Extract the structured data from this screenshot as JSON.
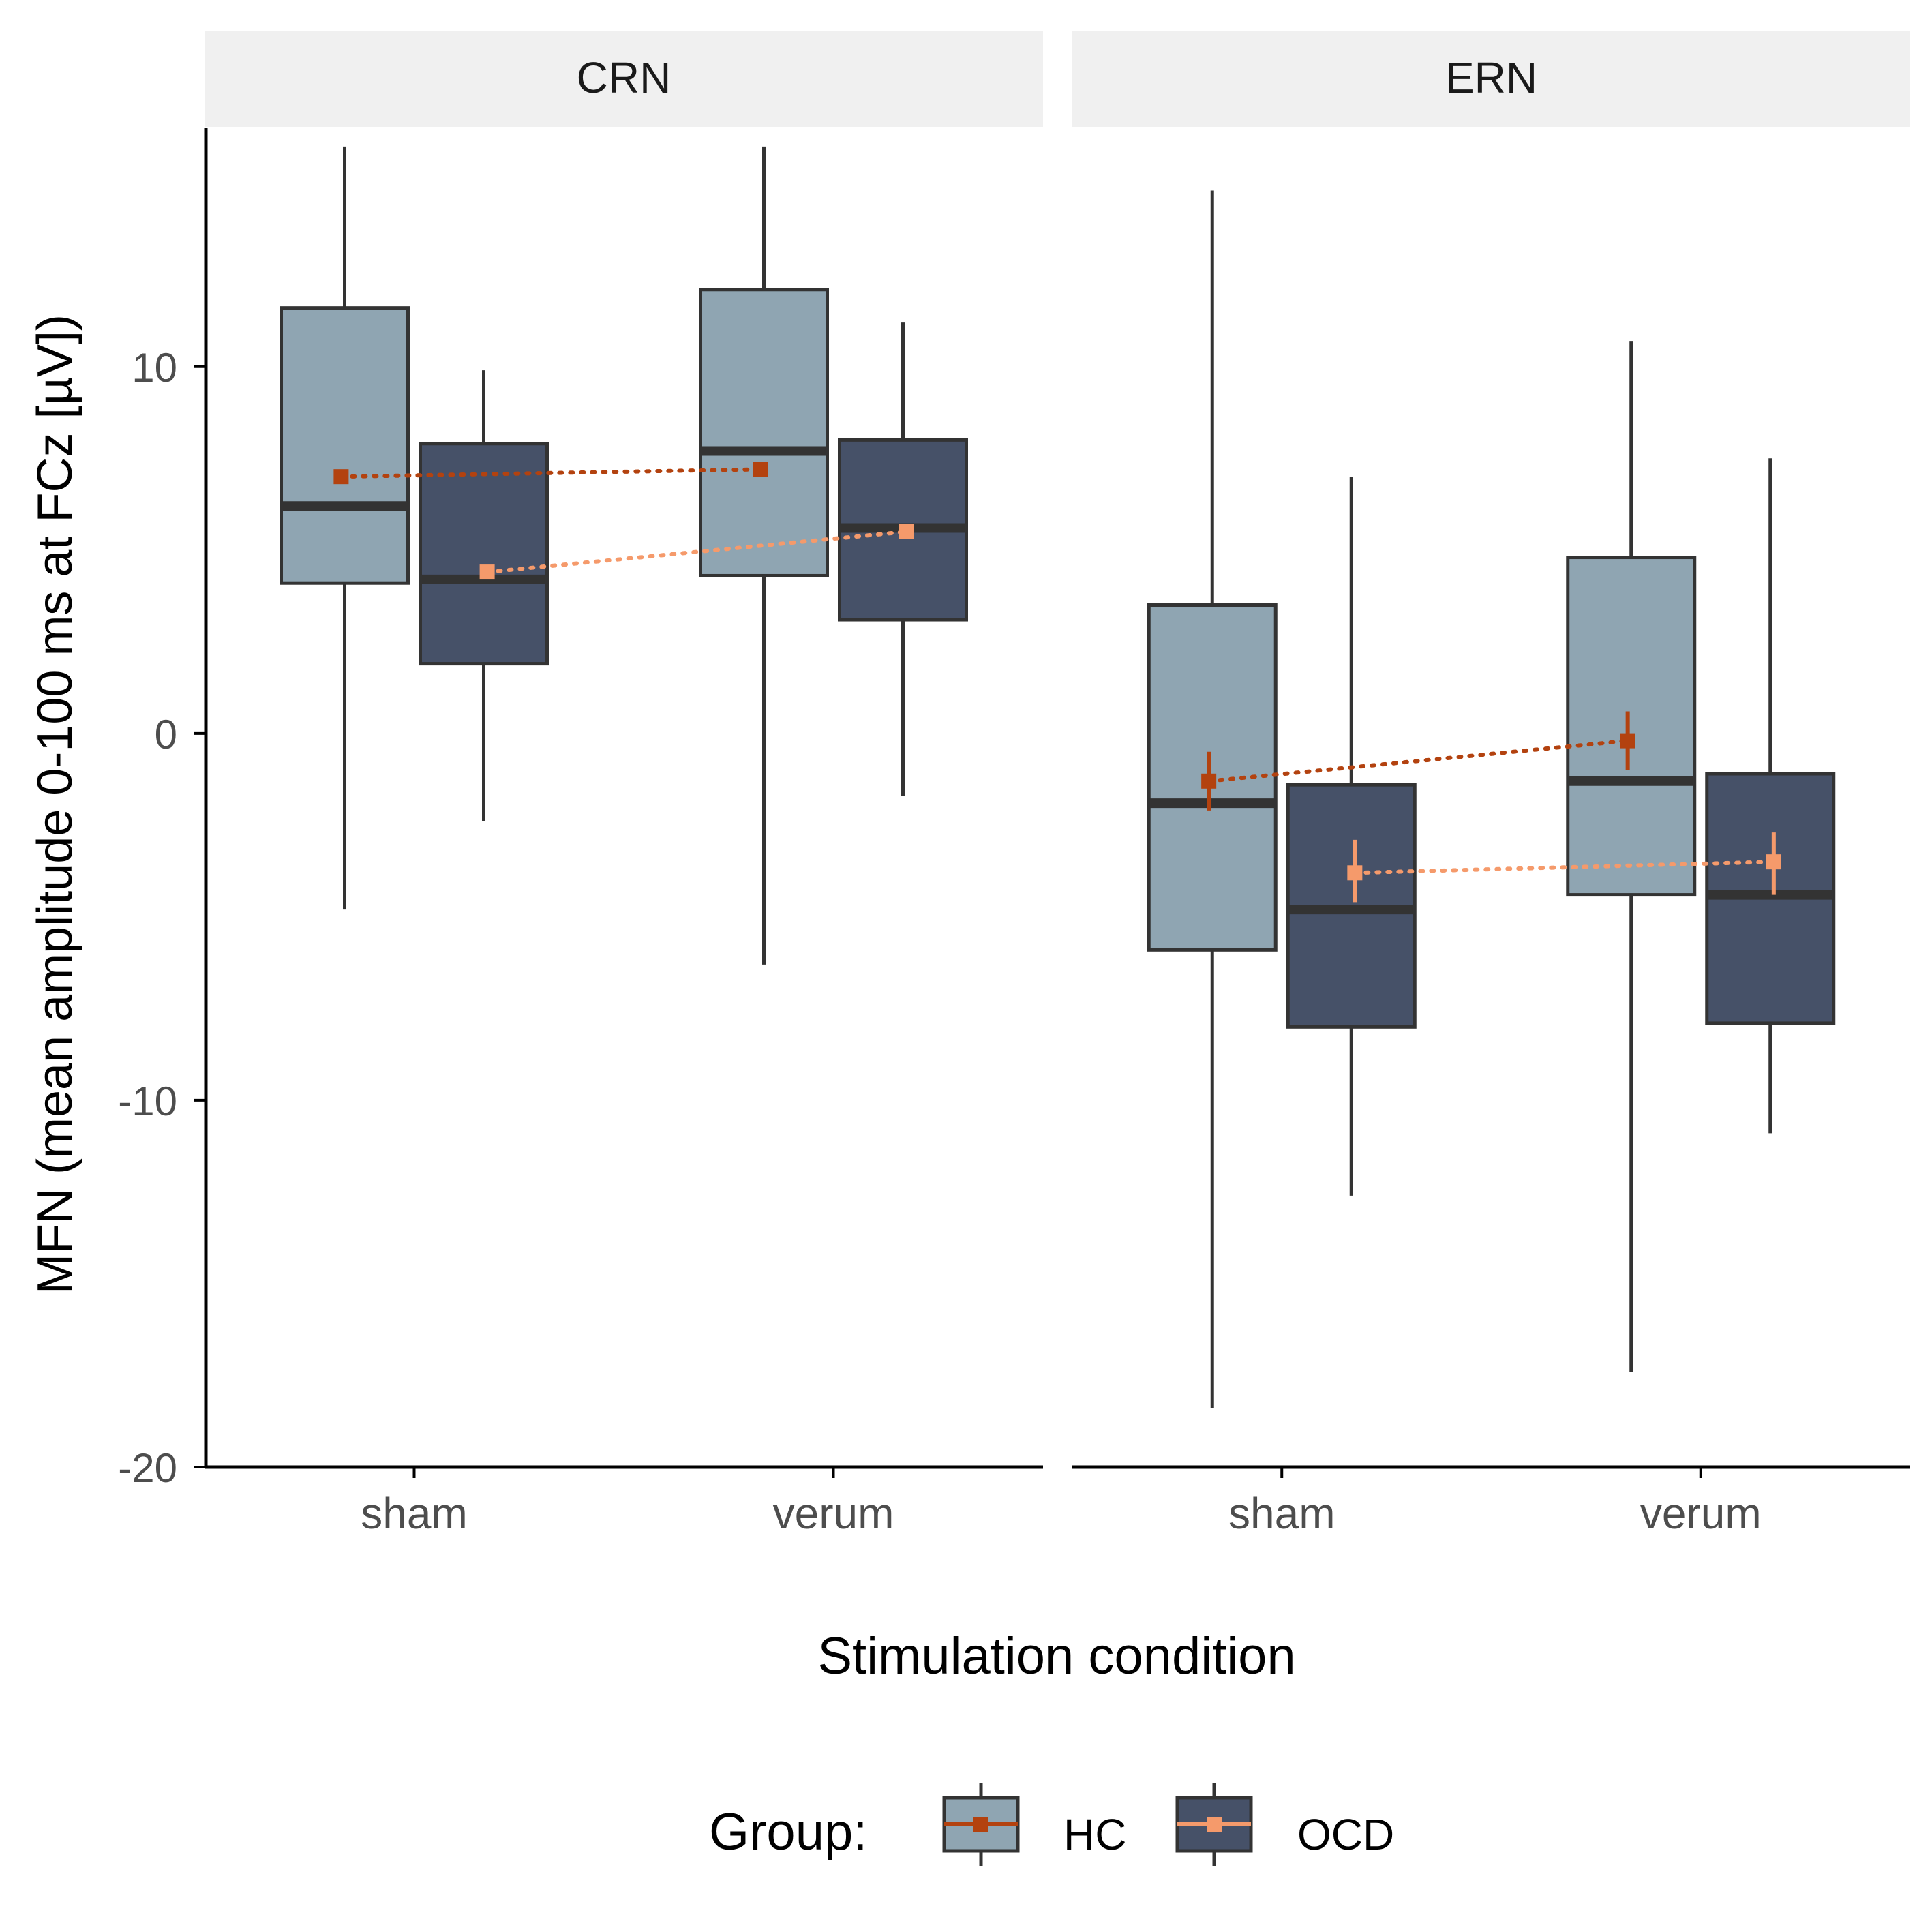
{
  "chart_data": {
    "type": "boxplot",
    "ylabel": "MFN (mean amplitude 0-100 ms at FCz [µV])",
    "xlabel": "Stimulation condition",
    "ylim": [
      -20,
      16.5
    ],
    "yticks": [
      -20,
      -10,
      0,
      10
    ],
    "categories": [
      "sham",
      "verum"
    ],
    "groups": [
      "HC",
      "OCD"
    ],
    "legend": {
      "title": "Group:",
      "position": "bottom",
      "items": [
        "HC",
        "OCD"
      ]
    },
    "colors": {
      "box_HC": "#8fa5b2",
      "box_OCD": "#465168",
      "outline": "#333333",
      "mean_HC": "#b3420f",
      "mean_OCD": "#f59a6b",
      "strip_bg": "#f0f0f0"
    },
    "panels": [
      {
        "title": "CRN",
        "boxes": [
          {
            "group": "HC",
            "condition": "sham",
            "min": -4.8,
            "q1": 4.1,
            "median": 6.2,
            "q3": 11.6,
            "max": 16.0
          },
          {
            "group": "OCD",
            "condition": "sham",
            "min": -2.4,
            "q1": 1.9,
            "median": 4.2,
            "q3": 7.9,
            "max": 9.9
          },
          {
            "group": "HC",
            "condition": "verum",
            "min": -6.3,
            "q1": 4.3,
            "median": 7.7,
            "q3": 12.1,
            "max": 16.0
          },
          {
            "group": "OCD",
            "condition": "verum",
            "min": -1.7,
            "q1": 3.1,
            "median": 5.6,
            "q3": 8.0,
            "max": 11.2
          }
        ],
        "means": [
          {
            "group": "HC",
            "condition": "sham",
            "mean": 7.0,
            "lo": 7.0,
            "hi": 7.0
          },
          {
            "group": "HC",
            "condition": "verum",
            "mean": 7.2,
            "lo": 7.2,
            "hi": 7.2
          },
          {
            "group": "OCD",
            "condition": "sham",
            "mean": 4.4,
            "lo": 4.4,
            "hi": 4.4
          },
          {
            "group": "OCD",
            "condition": "verum",
            "mean": 5.5,
            "lo": 5.5,
            "hi": 5.5
          }
        ]
      },
      {
        "title": "ERN",
        "boxes": [
          {
            "group": "HC",
            "condition": "sham",
            "min": -18.4,
            "q1": -5.9,
            "median": -1.9,
            "q3": 3.5,
            "max": 14.8
          },
          {
            "group": "OCD",
            "condition": "sham",
            "min": -12.6,
            "q1": -8.0,
            "median": -4.8,
            "q3": -1.4,
            "max": 7.0
          },
          {
            "group": "HC",
            "condition": "verum",
            "min": -17.4,
            "q1": -4.4,
            "median": -1.3,
            "q3": 4.8,
            "max": 10.7
          },
          {
            "group": "OCD",
            "condition": "verum",
            "min": -10.9,
            "q1": -7.9,
            "median": -4.4,
            "q3": -1.1,
            "max": 7.5
          }
        ],
        "means": [
          {
            "group": "HC",
            "condition": "sham",
            "mean": -1.3,
            "lo": -2.1,
            "hi": -0.5
          },
          {
            "group": "HC",
            "condition": "verum",
            "mean": -0.2,
            "lo": -1.0,
            "hi": 0.6
          },
          {
            "group": "OCD",
            "condition": "sham",
            "mean": -3.8,
            "lo": -4.6,
            "hi": -2.9
          },
          {
            "group": "OCD",
            "condition": "verum",
            "mean": -3.5,
            "lo": -4.4,
            "hi": -2.7
          }
        ]
      }
    ]
  }
}
